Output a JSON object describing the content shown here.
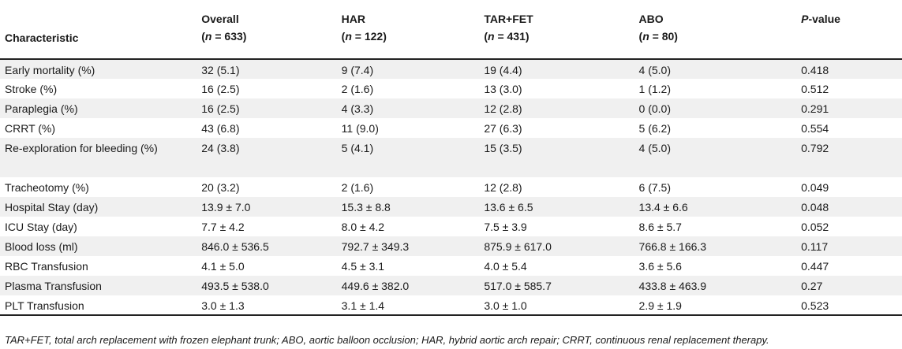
{
  "table": {
    "headers": [
      {
        "title": "Characteristic",
        "n": ""
      },
      {
        "title": "Overall",
        "n": "(n = 633)"
      },
      {
        "title": "HAR",
        "n": "(n = 122)"
      },
      {
        "title": "TAR+FET",
        "n": "(n = 431)"
      },
      {
        "title": "ABO",
        "n": "(n = 80)"
      },
      {
        "title": "P-value",
        "n": ""
      }
    ],
    "rows": [
      [
        "Early mortality (%)",
        "32 (5.1)",
        "9 (7.4)",
        "19 (4.4)",
        "4 (5.0)",
        "0.418"
      ],
      [
        "Stroke (%)",
        "16 (2.5)",
        "2 (1.6)",
        "13 (3.0)",
        "1 (1.2)",
        "0.512"
      ],
      [
        "Paraplegia (%)",
        "16 (2.5)",
        "4 (3.3)",
        "12 (2.8)",
        "0 (0.0)",
        "0.291"
      ],
      [
        "CRRT (%)",
        "43 (6.8)",
        "11 (9.0)",
        "27 (6.3)",
        "5 (6.2)",
        "0.554"
      ],
      [
        "Re-exploration for bleeding (%)",
        "24 (3.8)",
        "5 (4.1)",
        "15 (3.5)",
        "4 (5.0)",
        "0.792"
      ],
      [
        "Tracheotomy (%)",
        "20 (3.2)",
        "2 (1.6)",
        "12 (2.8)",
        "6 (7.5)",
        "0.049"
      ],
      [
        "Hospital Stay (day)",
        "13.9 ± 7.0",
        "15.3 ± 8.8",
        "13.6 ± 6.5",
        "13.4 ± 6.6",
        "0.048"
      ],
      [
        "ICU Stay (day)",
        "7.7 ± 4.2",
        "8.0 ± 4.2",
        "7.5 ± 3.9",
        "8.6 ± 5.7",
        "0.052"
      ],
      [
        "Blood loss (ml)",
        "846.0 ± 536.5",
        "792.7 ± 349.3",
        "875.9 ± 617.0",
        "766.8 ± 166.3",
        "0.117"
      ],
      [
        "RBC Transfusion",
        "4.1 ± 5.0",
        "4.5 ± 3.1",
        "4.0 ± 5.4",
        "3.6 ± 5.6",
        "0.447"
      ],
      [
        "Plasma Transfusion",
        "493.5 ± 538.0",
        "449.6 ± 382.0",
        "517.0 ± 585.7",
        "433.8 ± 463.9",
        "0.27"
      ],
      [
        "PLT Transfusion",
        "3.0 ± 1.3",
        "3.1 ± 1.4",
        "3.0 ± 1.0",
        "2.9 ± 1.9",
        "0.523"
      ]
    ]
  },
  "footnote": "TAR+FET, total arch replacement with frozen elephant trunk; ABO, aortic balloon occlusion; HAR, hybrid aortic arch repair; CRRT, continuous renal replacement therapy."
}
